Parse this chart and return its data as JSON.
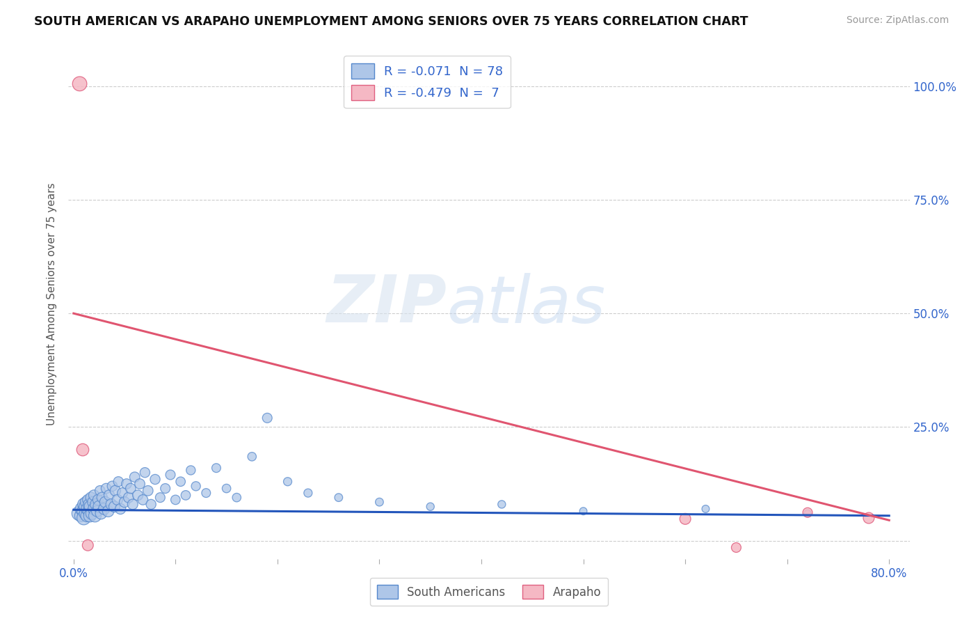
{
  "title": "SOUTH AMERICAN VS ARAPAHO UNEMPLOYMENT AMONG SENIORS OVER 75 YEARS CORRELATION CHART",
  "source": "Source: ZipAtlas.com",
  "ylabel": "Unemployment Among Seniors over 75 years",
  "xlim": [
    -0.005,
    0.82
  ],
  "ylim": [
    -0.04,
    1.08
  ],
  "xtick_vals": [
    0.0,
    0.1,
    0.2,
    0.3,
    0.4,
    0.5,
    0.6,
    0.7,
    0.8
  ],
  "xticklabels": [
    "0.0%",
    "",
    "",
    "",
    "",
    "",
    "",
    "",
    "80.0%"
  ],
  "ytick_vals": [
    0.0,
    0.25,
    0.5,
    0.75,
    1.0
  ],
  "yticklabels_right": [
    "",
    "25.0%",
    "50.0%",
    "75.0%",
    "100.0%"
  ],
  "blue_R": -0.071,
  "blue_N": 78,
  "pink_R": -0.479,
  "pink_N": 7,
  "blue_dot_color": "#aec6e8",
  "blue_edge_color": "#5588cc",
  "pink_dot_color": "#f5b8c4",
  "pink_edge_color": "#e06080",
  "blue_line_color": "#2255bb",
  "pink_line_color": "#e05570",
  "grid_color": "#cccccc",
  "watermark_color": "#dde8f5",
  "legend_label1": "South Americans",
  "legend_label2": "Arapaho",
  "blue_line_x0": 0.0,
  "blue_line_y0": 0.068,
  "blue_line_x1": 0.8,
  "blue_line_y1": 0.055,
  "pink_line_x0": 0.0,
  "pink_line_y0": 0.5,
  "pink_line_x1": 0.8,
  "pink_line_y1": 0.045,
  "blue_scatter_x": [
    0.005,
    0.007,
    0.008,
    0.009,
    0.01,
    0.01,
    0.011,
    0.012,
    0.012,
    0.013,
    0.013,
    0.014,
    0.015,
    0.015,
    0.016,
    0.016,
    0.017,
    0.018,
    0.019,
    0.02,
    0.02,
    0.021,
    0.022,
    0.023,
    0.024,
    0.025,
    0.026,
    0.027,
    0.028,
    0.03,
    0.031,
    0.032,
    0.034,
    0.035,
    0.037,
    0.038,
    0.04,
    0.041,
    0.043,
    0.044,
    0.046,
    0.048,
    0.05,
    0.052,
    0.054,
    0.056,
    0.058,
    0.06,
    0.063,
    0.065,
    0.068,
    0.07,
    0.073,
    0.076,
    0.08,
    0.085,
    0.09,
    0.095,
    0.1,
    0.105,
    0.11,
    0.115,
    0.12,
    0.13,
    0.14,
    0.15,
    0.16,
    0.175,
    0.19,
    0.21,
    0.23,
    0.26,
    0.3,
    0.35,
    0.42,
    0.5,
    0.62,
    0.72
  ],
  "blue_scatter_y": [
    0.06,
    0.055,
    0.07,
    0.065,
    0.08,
    0.05,
    0.075,
    0.06,
    0.085,
    0.055,
    0.07,
    0.09,
    0.065,
    0.08,
    0.055,
    0.075,
    0.095,
    0.06,
    0.085,
    0.07,
    0.1,
    0.055,
    0.08,
    0.065,
    0.09,
    0.075,
    0.11,
    0.06,
    0.095,
    0.07,
    0.085,
    0.115,
    0.065,
    0.1,
    0.08,
    0.12,
    0.075,
    0.11,
    0.09,
    0.13,
    0.07,
    0.105,
    0.085,
    0.125,
    0.095,
    0.115,
    0.08,
    0.14,
    0.1,
    0.125,
    0.09,
    0.15,
    0.11,
    0.08,
    0.135,
    0.095,
    0.115,
    0.145,
    0.09,
    0.13,
    0.1,
    0.155,
    0.12,
    0.105,
    0.16,
    0.115,
    0.095,
    0.185,
    0.27,
    0.13,
    0.105,
    0.095,
    0.085,
    0.075,
    0.08,
    0.065,
    0.07,
    0.06
  ],
  "blue_scatter_size": [
    200,
    160,
    180,
    140,
    160,
    200,
    140,
    180,
    130,
    160,
    140,
    120,
    150,
    130,
    170,
    140,
    120,
    160,
    130,
    150,
    120,
    170,
    140,
    130,
    120,
    150,
    110,
    140,
    120,
    140,
    130,
    110,
    140,
    120,
    130,
    110,
    130,
    120,
    120,
    105,
    120,
    115,
    120,
    110,
    115,
    110,
    115,
    110,
    115,
    110,
    110,
    105,
    110,
    105,
    105,
    100,
    100,
    100,
    95,
    95,
    95,
    90,
    90,
    85,
    85,
    80,
    80,
    80,
    100,
    75,
    75,
    70,
    70,
    65,
    65,
    60,
    60,
    55
  ],
  "pink_scatter_x": [
    0.006,
    0.009,
    0.014,
    0.6,
    0.65,
    0.72,
    0.78
  ],
  "pink_scatter_y": [
    1.005,
    0.2,
    -0.01,
    0.048,
    -0.015,
    0.062,
    0.05
  ],
  "pink_scatter_size": [
    220,
    160,
    130,
    130,
    100,
    100,
    130
  ]
}
